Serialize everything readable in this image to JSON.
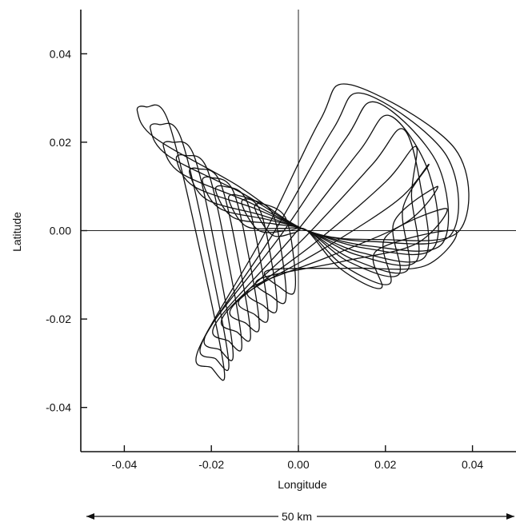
{
  "chart_data": {
    "type": "line",
    "title": "",
    "xlabel": "Longitude",
    "ylabel": "Latitude",
    "xlim": [
      -0.05,
      0.05
    ],
    "ylim": [
      -0.05,
      0.05
    ],
    "x_ticks": [
      -0.04,
      -0.02,
      0.0,
      0.02,
      0.04
    ],
    "x_tick_labels": [
      "-0.04",
      "-0.02",
      "0.00",
      "0.02",
      "0.04"
    ],
    "y_ticks": [
      0.04,
      0.02,
      0.0,
      -0.02,
      -0.04
    ],
    "y_tick_labels": [
      "0.04",
      "0.02",
      "0.00",
      "-0.02",
      "-0.04"
    ],
    "zero_lines": true,
    "grid": false,
    "loops": {
      "count": 10,
      "left_lobe_tip_x": [
        -0.037,
        -0.034,
        -0.031,
        -0.028,
        -0.025,
        -0.022,
        -0.019,
        -0.016,
        -0.013,
        -0.01
      ],
      "left_lobe_tip_y": [
        0.027,
        0.023,
        0.019,
        0.016,
        0.013,
        0.011,
        0.009,
        0.007,
        0.006,
        0.005
      ],
      "upper_lobe_tip_x": [
        0.012,
        0.015,
        0.018,
        0.021,
        0.024,
        0.027,
        0.03,
        0.032,
        0.034,
        0.036
      ],
      "upper_lobe_tip_y": [
        0.033,
        0.031,
        0.029,
        0.026,
        0.023,
        0.019,
        0.015,
        0.01,
        0.005,
        0.0
      ],
      "lower_lobe_tip_x": [
        -0.02,
        -0.019,
        -0.018,
        -0.016,
        -0.014,
        -0.012,
        -0.01,
        -0.008,
        -0.006,
        -0.004
      ],
      "lower_lobe_tip_y": [
        -0.031,
        -0.029,
        -0.027,
        -0.025,
        -0.023,
        -0.021,
        -0.019,
        -0.017,
        -0.015,
        -0.013
      ],
      "right_lobe_tip_x": [
        0.037,
        0.035,
        0.033,
        0.031,
        0.029,
        0.027,
        0.025,
        0.023,
        0.021,
        0.019
      ],
      "right_lobe_tip_y": [
        0.0,
        -0.001,
        -0.003,
        -0.004,
        -0.006,
        -0.007,
        -0.009,
        -0.01,
        -0.012,
        -0.013
      ]
    },
    "scale_bar": {
      "label": "50 km",
      "from_x": -0.05,
      "to_x": 0.05
    }
  }
}
